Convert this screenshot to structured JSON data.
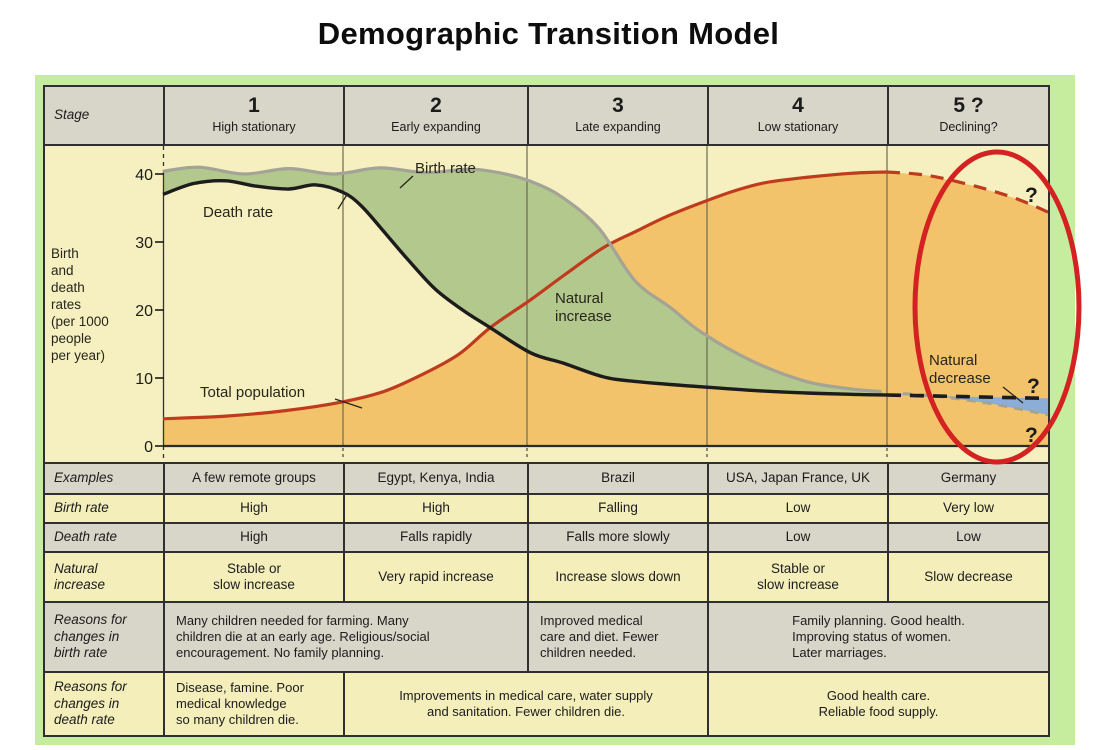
{
  "title": "Demographic Transition Model",
  "stage_header": {
    "label": "Stage",
    "stages": [
      {
        "number": "1",
        "name": "High stationary"
      },
      {
        "number": "2",
        "name": "Early expanding"
      },
      {
        "number": "3",
        "name": "Late expanding"
      },
      {
        "number": "4",
        "name": "Low stationary"
      },
      {
        "number": "5 ?",
        "name": "Declining?"
      }
    ]
  },
  "chart_data": {
    "type": "line",
    "title": "Demographic Transition Model",
    "ylabel": "Birth and death rates (per 1000 people per year)",
    "ylabel_lines": [
      "Birth",
      "and",
      "death",
      "rates",
      "(per 1000",
      "people",
      "per year)"
    ],
    "yticks": [
      "40",
      "30",
      "20",
      "10",
      "0"
    ],
    "ylim": [
      0,
      45
    ],
    "x_unit": "stage (0 = start of stage 1, 5 = end of stage 5); dashed = projected / uncertain",
    "x_categories": [
      "1 High stationary",
      "2 Early expanding",
      "3 Late expanding",
      "4 Low stationary",
      "5? Declining?"
    ],
    "annotations": {
      "birth_rate": "Birth rate",
      "death_rate": "Death rate",
      "total_population": "Total population",
      "natural_increase_lines": [
        "Natural",
        "increase"
      ],
      "natural_decrease_lines": [
        "Natural",
        "decrease"
      ],
      "question_marks": [
        "?",
        "?",
        "?"
      ]
    },
    "series": [
      {
        "id": "birth_rate_solid",
        "name": "Birth rate",
        "line": "solid",
        "points": [
          [
            0,
            40.4
          ],
          [
            0.2,
            41
          ],
          [
            0.45,
            40
          ],
          [
            0.7,
            40.8
          ],
          [
            0.95,
            40
          ],
          [
            1.2,
            40.9
          ],
          [
            1.45,
            40.2
          ],
          [
            1.7,
            40.7
          ],
          [
            1.9,
            39.9
          ],
          [
            2.05,
            38.6
          ],
          [
            2.2,
            36.5
          ],
          [
            2.4,
            32
          ],
          [
            2.6,
            24.3
          ],
          [
            2.8,
            20.3
          ],
          [
            2.97,
            16.7
          ],
          [
            3.25,
            12.5
          ],
          [
            3.55,
            9.5
          ],
          [
            3.8,
            8.4
          ],
          [
            3.97,
            8
          ]
        ]
      },
      {
        "id": "birth_rate_dashed",
        "name": "Birth rate (stage 5, uncertain)",
        "line": "dashed",
        "points": [
          [
            4.1,
            7.7
          ],
          [
            4.35,
            7.2
          ],
          [
            4.65,
            6.2
          ],
          [
            5,
            4.6
          ]
        ]
      },
      {
        "id": "death_rate_solid",
        "name": "Death rate",
        "line": "solid",
        "points": [
          [
            0,
            37
          ],
          [
            0.17,
            38.6
          ],
          [
            0.35,
            39
          ],
          [
            0.52,
            38.2
          ],
          [
            0.7,
            37.8
          ],
          [
            0.85,
            38.4
          ],
          [
            1,
            37.3
          ],
          [
            1.1,
            35.3
          ],
          [
            1.22,
            31.6
          ],
          [
            1.35,
            27.5
          ],
          [
            1.5,
            23.1
          ],
          [
            1.65,
            20
          ],
          [
            1.8,
            17.4
          ],
          [
            2.02,
            13.7
          ],
          [
            2.2,
            12.2
          ],
          [
            2.42,
            10.2
          ],
          [
            2.6,
            9.5
          ],
          [
            2.97,
            8.7
          ],
          [
            3.3,
            8.1
          ],
          [
            3.55,
            7.8
          ],
          [
            3.8,
            7.6
          ],
          [
            4,
            7.5
          ]
        ]
      },
      {
        "id": "death_rate_dashed",
        "name": "Death rate (stage 5, uncertain)",
        "line": "dashed",
        "points": [
          [
            4,
            7.5
          ],
          [
            4.5,
            7.25
          ],
          [
            5,
            7
          ]
        ]
      },
      {
        "id": "total_population_solid",
        "name": "Total population",
        "line": "solid",
        "points": [
          [
            0,
            4
          ],
          [
            0.35,
            4.4
          ],
          [
            0.68,
            5.2
          ],
          [
            1,
            6.5
          ],
          [
            1.22,
            8
          ],
          [
            1.43,
            10.5
          ],
          [
            1.63,
            13.5
          ],
          [
            1.8,
            17.4
          ],
          [
            2.02,
            21.5
          ],
          [
            2.2,
            25
          ],
          [
            2.42,
            29.1
          ],
          [
            2.6,
            31.5
          ],
          [
            2.78,
            33.8
          ],
          [
            2.97,
            35.8
          ],
          [
            3.15,
            37.5
          ],
          [
            3.32,
            38.7
          ],
          [
            3.55,
            39.5
          ],
          [
            3.8,
            40.1
          ],
          [
            4,
            40.3
          ]
        ]
      },
      {
        "id": "total_population_dashed",
        "name": "Total population (stage 5, uncertain)",
        "line": "dashed",
        "points": [
          [
            4,
            40.3
          ],
          [
            4.25,
            39.8
          ],
          [
            4.55,
            38.2
          ],
          [
            4.8,
            36.4
          ],
          [
            5,
            34.4
          ]
        ]
      }
    ],
    "areas": [
      {
        "id": "population_fill",
        "label": "area under total population curve"
      },
      {
        "id": "natural_increase_fill",
        "label": "Natural increase (birth rate above death rate)"
      },
      {
        "id": "natural_decrease_fill",
        "label": "Natural decrease (birth rate below death rate, stage 5)"
      }
    ],
    "colors": {
      "birth_rate": "#a3a396",
      "death_rate": "#1c1c1c",
      "total_population": "#bf3b1e",
      "population_fill": "#f2c36a",
      "natural_increase_fill": "#b3c88c",
      "natural_decrease_fill": "#8badd8",
      "plot_background": "#f6efbf",
      "annotation_circle": "#d42121"
    }
  },
  "table": {
    "row_labels": {
      "examples": "Examples",
      "birth_rate": "Birth rate",
      "death_rate": "Death rate",
      "natural_increase": "Natural\nincrease",
      "reasons_birth": "Reasons for\nchanges in\nbirth rate",
      "reasons_death": "Reasons for\nchanges in\ndeath rate"
    },
    "examples": [
      "A few remote groups",
      "Egypt, Kenya, India",
      "Brazil",
      "USA, Japan France, UK",
      "Germany"
    ],
    "birth_rate": [
      "High",
      "High",
      "Falling",
      "Low",
      "Very low"
    ],
    "death_rate": [
      "High",
      "Falls rapidly",
      "Falls more slowly",
      "Low",
      "Low"
    ],
    "natural_increase": [
      "Stable or\nslow increase",
      "Very rapid increase",
      "Increase slows down",
      "Stable or\nslow increase",
      "Slow decrease"
    ],
    "reasons_birth": [
      "Many children needed for farming. Many\nchildren die at an early age. Religious/social\nencouragement. No family planning.",
      "Improved medical\ncare and diet. Fewer\nchildren needed.",
      "Family planning. Good health.\nImproving status of women.\nLater marriages."
    ],
    "reasons_death": [
      "Disease, famine. Poor\nmedical knowledge\nso many children die.",
      "Improvements in medical care, water supply\nand sanitation. Fewer children die.",
      "Good health care.\nReliable food supply."
    ]
  }
}
